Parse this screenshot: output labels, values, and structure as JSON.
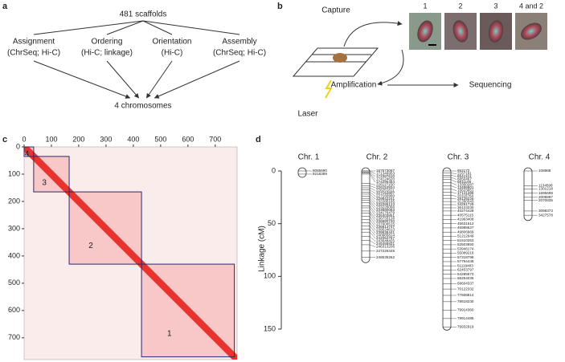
{
  "panel_a": {
    "label": "a",
    "top": "481 scaffolds",
    "steps": [
      {
        "title": "Assignment",
        "detail": "(ChrSeq; Hi-C)"
      },
      {
        "title": "Ordering",
        "detail": "(Hi-C; linkage)"
      },
      {
        "title": "Orientation",
        "detail": "(Hi-C)"
      },
      {
        "title": "Assembly",
        "detail": "(ChrSeq; Hi-C)"
      }
    ],
    "bottom": "4 chromosomes"
  },
  "panel_b": {
    "label": "b",
    "capture": "Capture",
    "images": [
      "1",
      "2",
      "3",
      "4 and 2"
    ],
    "laser": "Laser",
    "amplification": "Amplification",
    "sequencing": "Sequencing"
  },
  "chart_data": [
    {
      "type": "heatmap",
      "label": "c",
      "xlim": [
        0,
        780
      ],
      "ylim": [
        0,
        780
      ],
      "xticks": [
        0,
        100,
        200,
        300,
        400,
        500,
        600,
        700
      ],
      "yticks": [
        0,
        100,
        200,
        300,
        400,
        500,
        600,
        700
      ],
      "blocks": [
        {
          "label": "4",
          "start": 0,
          "end": 35
        },
        {
          "label": "3",
          "start": 35,
          "end": 165
        },
        {
          "label": "2",
          "start": 165,
          "end": 430
        },
        {
          "label": "1",
          "start": 430,
          "end": 770
        }
      ]
    },
    {
      "type": "linkage",
      "label": "d",
      "ylabel": "Linkage (cM)",
      "ylim": [
        0,
        150
      ],
      "yticks": [
        0,
        50,
        100,
        150
      ],
      "chromosomes": [
        {
          "name": "Chr. 1",
          "length": 3,
          "markers": [
            {
              "name": "8085690",
              "pos": 0
            },
            {
              "name": "8218389",
              "pos": 3
            }
          ]
        },
        {
          "name": "Chr. 2",
          "length": 84,
          "markers": [
            {
              "name": "167573067",
              "pos": 0
            },
            {
              "name": "171346953",
              "pos": 0
            },
            {
              "name": "172387610",
              "pos": 1
            },
            {
              "name": "174124620",
              "pos": 2
            },
            {
              "name": "174295454",
              "pos": 3
            },
            {
              "name": "226117150",
              "pos": 12
            },
            {
              "name": "226153934",
              "pos": 14
            },
            {
              "name": "226251811",
              "pos": 16
            },
            {
              "name": "227154807",
              "pos": 18
            },
            {
              "name": "227160960",
              "pos": 20
            },
            {
              "name": "229842241",
              "pos": 22
            },
            {
              "name": "232285165",
              "pos": 24
            },
            {
              "name": "232285123",
              "pos": 26
            },
            {
              "name": "233226066",
              "pos": 28
            },
            {
              "name": "233680083",
              "pos": 30
            },
            {
              "name": "234176479",
              "pos": 33
            },
            {
              "name": "235403851",
              "pos": 35
            },
            {
              "name": "236733128",
              "pos": 38
            },
            {
              "name": "236880740",
              "pos": 40
            },
            {
              "name": "237604515",
              "pos": 43
            },
            {
              "name": "238813747",
              "pos": 46
            },
            {
              "name": "239524613",
              "pos": 49
            },
            {
              "name": "239538441",
              "pos": 52
            },
            {
              "name": "240965814",
              "pos": 55
            },
            {
              "name": "242054757",
              "pos": 58
            },
            {
              "name": "243648425",
              "pos": 62
            },
            {
              "name": "245455921",
              "pos": 66
            },
            {
              "name": "246313206",
              "pos": 70
            },
            {
              "name": "247226445",
              "pos": 76
            },
            {
              "name": "248535262",
              "pos": 82
            }
          ]
        },
        {
          "name": "Chr. 3",
          "length": 148,
          "markers": [
            {
              "name": "652172",
              "pos": 0
            },
            {
              "name": "2167181",
              "pos": 2
            },
            {
              "name": "6541121",
              "pos": 4
            },
            {
              "name": "6850467",
              "pos": 6
            },
            {
              "name": "8811166",
              "pos": 8
            },
            {
              "name": "13350287",
              "pos": 11
            },
            {
              "name": "13488601",
              "pos": 14
            },
            {
              "name": "15623651",
              "pos": 17
            },
            {
              "name": "17141496",
              "pos": 20
            },
            {
              "name": "20116764",
              "pos": 23
            },
            {
              "name": "28128225",
              "pos": 26
            },
            {
              "name": "31260343",
              "pos": 29
            },
            {
              "name": "34281729",
              "pos": 32
            },
            {
              "name": "36123230",
              "pos": 35
            },
            {
              "name": "40274428",
              "pos": 38
            },
            {
              "name": "40575115",
              "pos": 42
            },
            {
              "name": "41963408",
              "pos": 46
            },
            {
              "name": "45631512",
              "pos": 50
            },
            {
              "name": "46988627",
              "pos": 54
            },
            {
              "name": "49806969",
              "pos": 58
            },
            {
              "name": "51212649",
              "pos": 62
            },
            {
              "name": "51510253",
              "pos": 66
            },
            {
              "name": "52503650",
              "pos": 70
            },
            {
              "name": "53946174",
              "pos": 74
            },
            {
              "name": "55089216",
              "pos": 78
            },
            {
              "name": "57318798",
              "pos": 82
            },
            {
              "name": "57794448",
              "pos": 86
            },
            {
              "name": "61119483",
              "pos": 90
            },
            {
              "name": "62453797",
              "pos": 94
            },
            {
              "name": "64285673",
              "pos": 98
            },
            {
              "name": "66254035",
              "pos": 102
            },
            {
              "name": "69604337",
              "pos": 107
            },
            {
              "name": "70122332",
              "pos": 112
            },
            {
              "name": "77608814",
              "pos": 118
            },
            {
              "name": "78618230",
              "pos": 124
            },
            {
              "name": "79914360",
              "pos": 132
            },
            {
              "name": "79914486",
              "pos": 140
            },
            {
              "name": "79932919",
              "pos": 148
            }
          ]
        },
        {
          "name": "Chr. 4",
          "length": 44,
          "markers": [
            {
              "name": "108988",
              "pos": 0
            },
            {
              "name": "1134598",
              "pos": 14
            },
            {
              "name": "1301218",
              "pos": 17
            },
            {
              "name": "1695699",
              "pos": 21
            },
            {
              "name": "2008897",
              "pos": 25
            },
            {
              "name": "2070835",
              "pos": 28
            },
            {
              "name": "3098373",
              "pos": 38
            },
            {
              "name": "3427578",
              "pos": 42
            }
          ]
        }
      ]
    }
  ]
}
